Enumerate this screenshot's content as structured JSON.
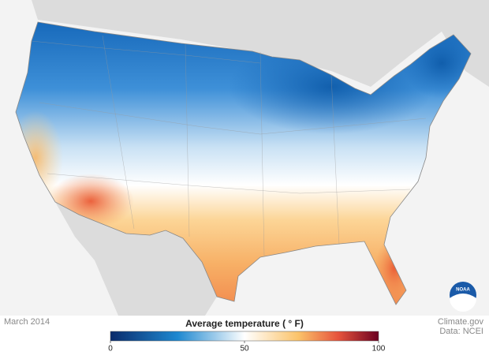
{
  "date": "March 2014",
  "legend": {
    "title": "Average temperature ( ° F)",
    "min": 0,
    "max": 100,
    "ticks": [
      0,
      50,
      100
    ]
  },
  "credits": [
    "Climate.gov",
    "Data: NCEI"
  ],
  "logo": "NOAA"
}
